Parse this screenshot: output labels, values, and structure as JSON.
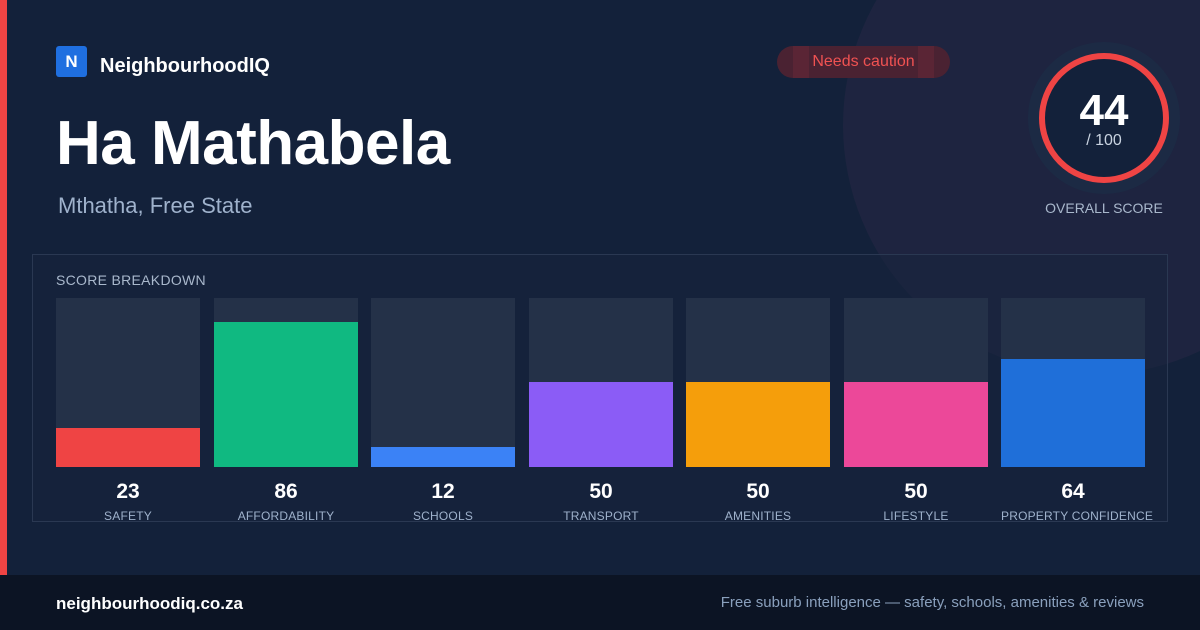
{
  "brand": {
    "logo_letter": "N",
    "name": "NeighbourhoodIQ"
  },
  "badge": {
    "label": "Needs caution"
  },
  "location": {
    "name": "Ha Mathabela",
    "region": "Mthatha, Free State"
  },
  "overall": {
    "score": "44",
    "max": "/ 100",
    "label": "OVERALL SCORE",
    "score_fraction": 0.44
  },
  "breakdown": {
    "title": "SCORE BREAKDOWN",
    "items": [
      {
        "label": "SAFETY",
        "value": "23",
        "score": 23,
        "color": "#ef4444"
      },
      {
        "label": "AFFORDABILITY",
        "value": "86",
        "score": 86,
        "color": "#10b981"
      },
      {
        "label": "SCHOOLS",
        "value": "12",
        "score": 12,
        "color": "#3b82f6"
      },
      {
        "label": "TRANSPORT",
        "value": "50",
        "score": 50,
        "color": "#8b5cf6"
      },
      {
        "label": "AMENITIES",
        "value": "50",
        "score": 50,
        "color": "#f59e0b"
      },
      {
        "label": "LIFESTYLE",
        "value": "50",
        "score": 50,
        "color": "#ec4899"
      },
      {
        "label": "PROPERTY CONFIDENCE",
        "value": "64",
        "score": 64,
        "color": "#1f6fd9"
      }
    ]
  },
  "footer": {
    "domain": "neighbourhoodiq.co.za",
    "tagline": "Free suburb intelligence — safety, schools, amenities & reviews"
  },
  "colors": {
    "accent": "#ef4444",
    "ring": "#ef4444",
    "background": "#13213a"
  }
}
